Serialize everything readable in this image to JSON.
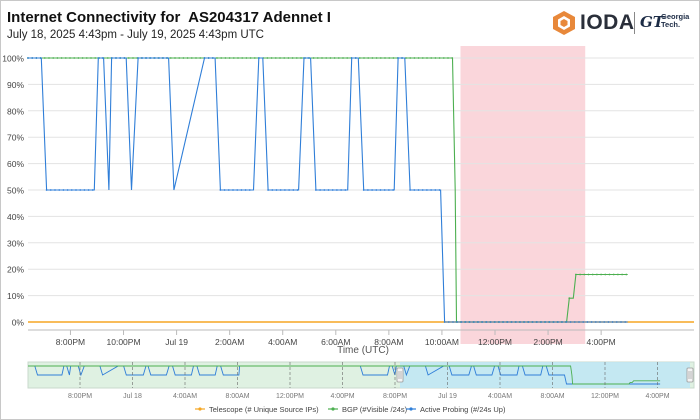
{
  "header": {
    "title": "Internet Connectivity for  AS204317 Adennet I",
    "subtitle": "July 18, 2025 4:43pm - July 19, 2025 4:43pm UTC",
    "logo_text": "IODA",
    "partner_mark": "GT",
    "partner_name_line1": "Georgia",
    "partner_name_line2": "Tech."
  },
  "colors": {
    "telescope": "#f5a623",
    "bgp": "#4caf50",
    "active_probing": "#2f7ed8",
    "outage_band": "#f8c8cf",
    "navigator_fill": "#dff1e2",
    "navigator_selection": "#bfe6f5"
  },
  "chart_data": {
    "type": "line",
    "title": "",
    "xlabel": "Time (UTC)",
    "ylabel": "",
    "ylim": [
      0,
      100
    ],
    "y_unit": "%",
    "y_ticks": [
      0,
      10,
      20,
      30,
      40,
      50,
      60,
      70,
      80,
      90,
      100
    ],
    "y_tick_labels": [
      "0%",
      "10%",
      "20%",
      "30%",
      "40%",
      "50%",
      "60%",
      "70%",
      "80%",
      "90%",
      "100%"
    ],
    "xlim_hours": [
      -0.6,
      24.5
    ],
    "x_unit": "hours since 7:00PM Jul 18 UTC",
    "x_ticks": [
      {
        "h": 1,
        "label": "8:00PM"
      },
      {
        "h": 3,
        "label": "10:00PM"
      },
      {
        "h": 5,
        "label": "Jul 19"
      },
      {
        "h": 7,
        "label": "2:00AM"
      },
      {
        "h": 9,
        "label": "4:00AM"
      },
      {
        "h": 11,
        "label": "6:00AM"
      },
      {
        "h": 13,
        "label": "8:00AM"
      },
      {
        "h": 15,
        "label": "10:00AM"
      },
      {
        "h": 17,
        "label": "12:00PM"
      },
      {
        "h": 19,
        "label": "2:00PM"
      },
      {
        "h": 21,
        "label": "4:00PM"
      }
    ],
    "outage_band_hours": [
      15.7,
      20.4
    ],
    "series": [
      {
        "name": "Telescope (# Unique Source IPs)",
        "points": [
          [
            -0.6,
            0
          ],
          [
            24.5,
            0
          ]
        ]
      },
      {
        "name": "BGP (#Visible /24s)",
        "points": [
          [
            -0.6,
            100
          ],
          [
            15.4,
            100
          ],
          [
            15.5,
            50
          ],
          [
            15.55,
            0
          ],
          [
            19.7,
            0
          ],
          [
            19.8,
            9
          ],
          [
            19.95,
            9
          ],
          [
            20.05,
            18
          ],
          [
            22.0,
            18
          ]
        ]
      },
      {
        "name": "Active Probing (#/24s Up)",
        "points": [
          [
            -0.6,
            100
          ],
          [
            -0.1,
            100
          ],
          [
            0.1,
            50
          ],
          [
            1.9,
            50
          ],
          [
            2.05,
            100
          ],
          [
            2.25,
            100
          ],
          [
            2.45,
            50
          ],
          [
            2.55,
            100
          ],
          [
            3.1,
            100
          ],
          [
            3.3,
            50
          ],
          [
            3.55,
            100
          ],
          [
            4.7,
            100
          ],
          [
            4.9,
            50
          ],
          [
            6.05,
            100
          ],
          [
            6.45,
            100
          ],
          [
            6.65,
            50
          ],
          [
            7.9,
            50
          ],
          [
            8.1,
            100
          ],
          [
            8.25,
            100
          ],
          [
            8.45,
            50
          ],
          [
            9.6,
            50
          ],
          [
            9.8,
            100
          ],
          [
            10.05,
            100
          ],
          [
            10.25,
            50
          ],
          [
            11.45,
            50
          ],
          [
            11.6,
            100
          ],
          [
            11.85,
            100
          ],
          [
            12.05,
            50
          ],
          [
            13.2,
            50
          ],
          [
            13.35,
            100
          ],
          [
            13.6,
            100
          ],
          [
            13.8,
            50
          ],
          [
            14.95,
            50
          ],
          [
            15.1,
            0
          ],
          [
            22.0,
            0
          ]
        ]
      }
    ],
    "navigator_x_labels": [
      "8:00PM",
      "Jul 18",
      "4:00AM",
      "8:00AM",
      "12:00PM",
      "4:00PM",
      "8:00PM",
      "Jul 19",
      "4:00AM",
      "8:00AM",
      "12:00PM",
      "4:00PM"
    ]
  },
  "legend": [
    {
      "key": "telescope",
      "label": "Telescope (# Unique Source IPs)"
    },
    {
      "key": "bgp",
      "label": "BGP (#Visible /24s)"
    },
    {
      "key": "active_probing",
      "label": "Active Probing (#/24s Up)"
    }
  ]
}
